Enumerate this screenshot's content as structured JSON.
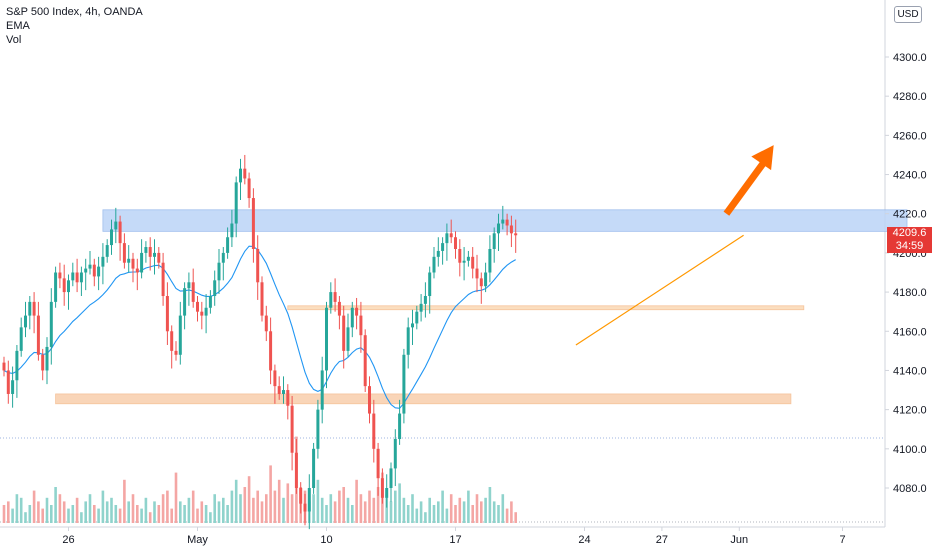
{
  "legend": {
    "symbol": "S&P 500 Index, 4h, OANDA",
    "ema": "EMA",
    "vol": "Vol"
  },
  "currency_button": "USD",
  "last_price": {
    "value": "4209.6",
    "countdown": "34:59",
    "color": "#e53935"
  },
  "colors": {
    "up": "#26a69a",
    "down": "#ef5350",
    "up_vol": "#8fd3cc",
    "down_vol": "#f4a6a4",
    "ema": "#2196f3",
    "resistance_zone": "#bbd4f7",
    "support_zone": "#f8ceac",
    "mid_zone": "#fbd9b5",
    "arrow": "#ff6d00",
    "trendline": "#ff9800",
    "grid_dotted": "#9fb6e0"
  },
  "chart_data": {
    "type": "candlestick",
    "ylim": [
      4060,
      4320
    ],
    "yticks": [
      4080,
      4100,
      4120,
      4140,
      4160,
      4180,
      4200,
      4220,
      4240,
      4260,
      4280,
      4300
    ],
    "xticks": [
      {
        "label": "26",
        "bar": 15
      },
      {
        "label": "May",
        "bar": 45
      },
      {
        "label": "10",
        "bar": 75
      },
      {
        "label": "17",
        "bar": 105
      },
      {
        "label": "24",
        "bar": 135
      },
      {
        "label": "27",
        "bar": 153
      },
      {
        "label": "Jun",
        "bar": 171
      },
      {
        "label": "7",
        "bar": 195
      }
    ],
    "zones": [
      {
        "name": "resistance",
        "y": [
          4211,
          4222
        ],
        "x": [
          23,
          210
        ]
      },
      {
        "name": "mid",
        "y": [
          4171,
          4173
        ],
        "x": [
          66,
          186
        ]
      },
      {
        "name": "support",
        "y": [
          4123,
          4128
        ],
        "x": [
          12,
          183
        ]
      }
    ],
    "trendline": {
      "from": [
        133,
        4153
      ],
      "to": [
        172,
        4209
      ]
    },
    "arrow": {
      "from": [
        168,
        4220
      ],
      "to": [
        179,
        4255
      ]
    },
    "closes": [
      4140,
      4128,
      4135,
      4150,
      4162,
      4168,
      4175,
      4168,
      4148,
      4140,
      4152,
      4175,
      4190,
      4187,
      4180,
      4186,
      4190,
      4185,
      4190,
      4192,
      4194,
      4188,
      4193,
      4198,
      4204,
      4212,
      4216,
      4205,
      4195,
      4197,
      4192,
      4190,
      4200,
      4203,
      4198,
      4200,
      4195,
      4178,
      4160,
      4150,
      4148,
      4168,
      4182,
      4185,
      4175,
      4170,
      4168,
      4172,
      4178,
      4186,
      4195,
      4200,
      4208,
      4215,
      4236,
      4243,
      4238,
      4228,
      4202,
      4185,
      4168,
      4160,
      4140,
      4132,
      4128,
      4130,
      4122,
      4098,
      4080,
      4072,
      4068,
      4080,
      4100,
      4120,
      4140,
      4172,
      4180,
      4175,
      4168,
      4150,
      4162,
      4172,
      4168,
      4158,
      4132,
      4118,
      4100,
      4085,
      4075,
      4080,
      4090,
      4105,
      4118,
      4148,
      4162,
      4164,
      4170,
      4174,
      4178,
      4190,
      4198,
      4201,
      4205,
      4210,
      4208,
      4202,
      4195,
      4196,
      4198,
      4192,
      4187,
      4183,
      4190,
      4202,
      4210,
      4215,
      4217,
      4214,
      4210,
      4209
    ],
    "volumes": [
      5,
      6,
      4,
      8,
      7,
      3,
      5,
      9,
      6,
      4,
      7,
      5,
      10,
      8,
      6,
      4,
      5,
      7,
      3,
      6,
      8,
      5,
      4,
      9,
      6,
      7,
      5,
      4,
      12,
      6,
      8,
      5,
      4,
      7,
      3,
      6,
      5,
      8,
      9,
      4,
      14,
      6,
      5,
      7,
      9,
      4,
      6,
      5,
      3,
      8,
      6,
      7,
      5,
      9,
      12,
      8,
      10,
      13,
      7,
      9,
      6,
      8,
      16,
      9,
      12,
      7,
      11,
      8,
      24,
      10,
      9,
      6,
      8,
      12,
      7,
      5,
      8,
      6,
      9,
      10,
      7,
      5,
      12,
      8,
      6,
      9,
      7,
      10,
      14,
      8,
      6,
      9,
      11,
      7,
      5,
      8,
      4,
      6,
      3,
      7,
      5,
      6,
      9,
      4,
      8,
      5,
      7,
      6,
      9,
      5,
      8,
      6,
      7,
      10,
      6,
      5,
      8,
      4,
      6,
      3
    ]
  }
}
